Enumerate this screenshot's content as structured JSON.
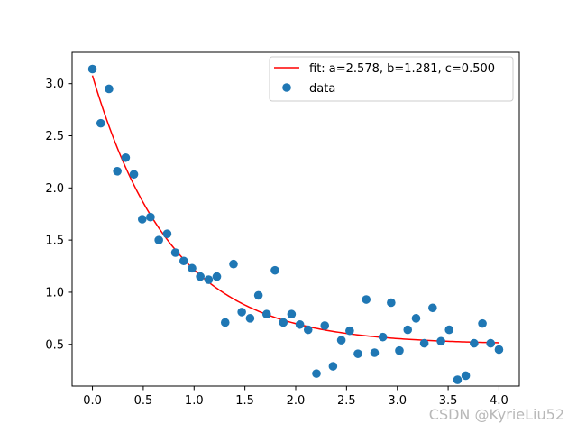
{
  "chart_data": {
    "type": "scatter",
    "title": "",
    "xlabel": "",
    "ylabel": "",
    "xlim": [
      -0.2,
      4.2
    ],
    "ylim": [
      0.1,
      3.3
    ],
    "xticks": [
      0.0,
      0.5,
      1.0,
      1.5,
      2.0,
      2.5,
      3.0,
      3.5,
      4.0
    ],
    "xtick_labels": [
      "0.0",
      "0.5",
      "1.0",
      "1.5",
      "2.0",
      "2.5",
      "3.0",
      "3.5",
      "4.0"
    ],
    "yticks": [
      0.5,
      1.0,
      1.5,
      2.0,
      2.5,
      3.0
    ],
    "ytick_labels": [
      "0.5",
      "1.0",
      "1.5",
      "2.0",
      "2.5",
      "3.0"
    ],
    "grid": false,
    "legend_position": "top-right",
    "series": [
      {
        "name": "fit: a=2.578, b=1.281, c=0.500",
        "kind": "line",
        "color": "#ff0000",
        "model": "a*exp(-b*x)+c",
        "params": {
          "a": 2.578,
          "b": 1.281,
          "c": 0.5
        },
        "x_range": [
          0.0,
          4.0
        ]
      },
      {
        "name": "data",
        "kind": "scatter",
        "color": "#1f77b4",
        "x": [
          0.0,
          0.082,
          0.163,
          0.245,
          0.327,
          0.408,
          0.49,
          0.571,
          0.653,
          0.735,
          0.816,
          0.898,
          0.98,
          1.061,
          1.143,
          1.224,
          1.306,
          1.388,
          1.469,
          1.551,
          1.633,
          1.714,
          1.796,
          1.878,
          1.959,
          2.041,
          2.122,
          2.204,
          2.286,
          2.367,
          2.449,
          2.531,
          2.612,
          2.694,
          2.776,
          2.857,
          2.939,
          3.02,
          3.102,
          3.184,
          3.265,
          3.347,
          3.429,
          3.51,
          3.592,
          3.673,
          3.755,
          3.837,
          3.918,
          4.0
        ],
        "y": [
          3.14,
          2.62,
          2.95,
          2.16,
          2.29,
          2.13,
          1.7,
          1.72,
          1.5,
          1.56,
          1.38,
          1.3,
          1.23,
          1.15,
          1.12,
          1.15,
          0.71,
          1.27,
          0.81,
          0.75,
          0.97,
          0.79,
          1.21,
          0.71,
          0.79,
          0.69,
          0.64,
          0.22,
          0.68,
          0.29,
          0.54,
          0.63,
          0.41,
          0.93,
          0.42,
          0.57,
          0.9,
          0.44,
          0.64,
          0.75,
          0.51,
          0.85,
          0.53,
          0.64,
          0.16,
          0.2,
          0.51,
          0.7,
          0.51,
          0.45
        ]
      }
    ]
  },
  "watermark": "CSDN @KyrieLiu52"
}
